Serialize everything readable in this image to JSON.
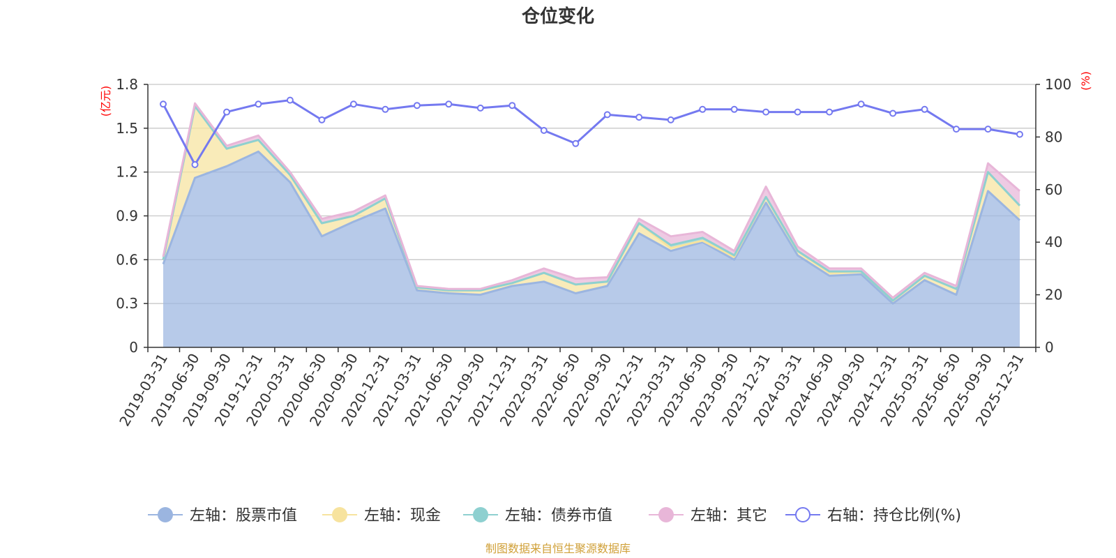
{
  "chart_data": {
    "type": "area",
    "title": "仓位变化",
    "left_unit": "(亿元)",
    "right_unit": "(%)",
    "source": "制图数据来自恒生聚源数据库",
    "x": [
      "2019-03-31",
      "2019-06-30",
      "2019-09-30",
      "2019-12-31",
      "2020-03-31",
      "2020-06-30",
      "2020-09-30",
      "2020-12-31",
      "2021-03-31",
      "2021-06-30",
      "2021-09-30",
      "2021-12-31",
      "2022-03-31",
      "2022-06-30",
      "2022-09-30",
      "2022-12-31",
      "2023-03-31",
      "2023-06-30",
      "2023-09-30",
      "2023-12-31",
      "2024-03-31",
      "2024-06-30",
      "2024-09-30",
      "2024-12-31",
      "2025-03-31",
      "2025-06-30",
      "2025-09-30",
      "2025-12-31"
    ],
    "left_axis": {
      "min": 0,
      "max": 1.8,
      "ticks": [
        "0",
        "0.3",
        "0.6",
        "0.9",
        "1.2",
        "1.5",
        "1.8"
      ]
    },
    "right_axis": {
      "min": 0,
      "max": 100,
      "ticks": [
        "0",
        "20",
        "40",
        "60",
        "80",
        "100"
      ]
    },
    "stacked_series": [
      {
        "name": "左轴：股票市值",
        "color": "#9bb5e0",
        "values": [
          0.57,
          1.16,
          1.24,
          1.34,
          1.13,
          0.76,
          0.86,
          0.95,
          0.39,
          0.37,
          0.36,
          0.42,
          0.45,
          0.37,
          0.42,
          0.78,
          0.66,
          0.72,
          0.6,
          0.99,
          0.63,
          0.49,
          0.5,
          0.3,
          0.46,
          0.36,
          1.07,
          0.87
        ]
      },
      {
        "name": "左轴：现金",
        "color": "#f7e39e",
        "values": [
          0.03,
          0.49,
          0.12,
          0.08,
          0.05,
          0.09,
          0.04,
          0.07,
          0.02,
          0.02,
          0.03,
          0.02,
          0.06,
          0.06,
          0.03,
          0.07,
          0.02,
          0.01,
          0.02,
          0.04,
          0.03,
          0.02,
          0.02,
          0.02,
          0.03,
          0.04,
          0.13,
          0.1
        ]
      },
      {
        "name": "左轴：债券市值",
        "color": "#8ed0d0",
        "values": [
          0,
          0,
          0,
          0,
          0,
          0,
          0,
          0,
          0,
          0,
          0,
          0,
          0,
          0,
          0,
          0,
          0.02,
          0.02,
          0.01,
          0,
          0,
          0.01,
          0,
          0,
          0,
          0,
          0,
          0
        ]
      },
      {
        "name": "左轴：其它",
        "color": "#e8b6d8",
        "values": [
          0.02,
          0.02,
          0.02,
          0.03,
          0.02,
          0.03,
          0.03,
          0.02,
          0.01,
          0.01,
          0.01,
          0.02,
          0.03,
          0.04,
          0.03,
          0.03,
          0.06,
          0.04,
          0.03,
          0.07,
          0.03,
          0.02,
          0.02,
          0.02,
          0.02,
          0.02,
          0.06,
          0.1
        ]
      }
    ],
    "line_series": {
      "name": "右轴：持仓比例(%)",
      "color": "#7479f0",
      "values": [
        92.5,
        69.5,
        89.5,
        92.5,
        94,
        86.5,
        92.5,
        90.5,
        92,
        92.5,
        91,
        92,
        82.5,
        77.5,
        88.5,
        87.5,
        86.5,
        90.5,
        90.5,
        89.5,
        89.5,
        89.5,
        92.5,
        89,
        90.5,
        83,
        83,
        81
      ]
    },
    "legend": [
      {
        "label": "左轴：股票市值",
        "color": "#9bb5e0",
        "marker": "filled-circle"
      },
      {
        "label": "左轴：现金",
        "color": "#f7e39e",
        "marker": "filled-circle"
      },
      {
        "label": "左轴：债券市值",
        "color": "#8ed0d0",
        "marker": "filled-circle"
      },
      {
        "label": "左轴：其它",
        "color": "#e8b6d8",
        "marker": "filled-circle"
      },
      {
        "label": "右轴：持仓比例(%)",
        "color": "#7479f0",
        "marker": "hollow-circle"
      }
    ],
    "legend_position": "bottom",
    "grid": true
  }
}
